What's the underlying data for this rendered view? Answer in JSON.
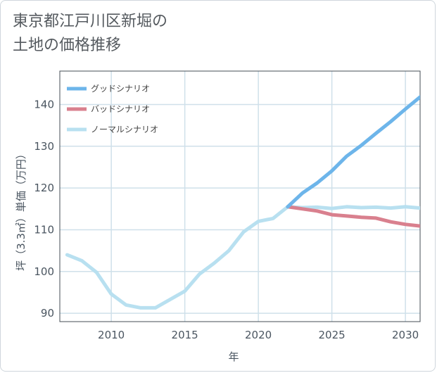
{
  "title_lines": [
    "東京都江戸川区新堀の",
    "土地の価格推移"
  ],
  "chart_data": {
    "type": "line",
    "xlabel": "年",
    "ylabel": "坪（3.3㎡）単価（万円）",
    "xlim": [
      2006.5,
      2031
    ],
    "ylim": [
      88,
      148
    ],
    "x_ticks": [
      2010,
      2015,
      2020,
      2025,
      2030
    ],
    "y_ticks": [
      90,
      100,
      110,
      120,
      130,
      140
    ],
    "grid": true,
    "legend_position": "top-left",
    "series": [
      {
        "name": "グッドシナリオ",
        "color": "#6db5ea",
        "x": [
          2022,
          2023,
          2024,
          2025,
          2026,
          2027,
          2028,
          2029,
          2030,
          2031
        ],
        "y": [
          115.5,
          118.8,
          121.2,
          124.1,
          127.6,
          130.2,
          133.1,
          135.9,
          138.9,
          141.8
        ]
      },
      {
        "name": "バッドシナリオ",
        "color": "#d9808e",
        "x": [
          2022,
          2023,
          2024,
          2025,
          2026,
          2027,
          2028,
          2029,
          2030,
          2031
        ],
        "y": [
          115.5,
          115.0,
          114.5,
          113.6,
          113.3,
          113.0,
          112.8,
          111.9,
          111.3,
          110.9
        ]
      },
      {
        "name": "ノーマルシナリオ",
        "color": "#b8e0f0",
        "x": [
          2007,
          2008,
          2009,
          2010,
          2011,
          2012,
          2013,
          2014,
          2015,
          2016,
          2017,
          2018,
          2019,
          2020,
          2021,
          2022,
          2023,
          2024,
          2025,
          2026,
          2027,
          2028,
          2029,
          2030,
          2031
        ],
        "y": [
          104.0,
          102.6,
          99.8,
          94.6,
          92.0,
          91.3,
          91.3,
          93.3,
          95.3,
          99.4,
          102.0,
          105.0,
          109.5,
          112.0,
          112.7,
          115.5,
          115.3,
          115.4,
          115.1,
          115.5,
          115.3,
          115.4,
          115.2,
          115.5,
          115.2
        ]
      }
    ]
  }
}
